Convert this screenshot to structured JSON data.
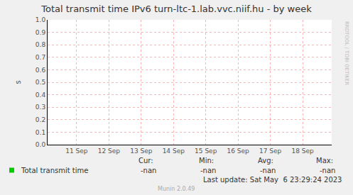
{
  "chart_data": {
    "type": "line",
    "title": "Total transmit time IPv6 turn-ltc-1.lab.vvc.niif.hu - by week",
    "y_label": "s",
    "categories": [
      "11 Sep",
      "12 Sep",
      "13 Sep",
      "14 Sep",
      "15 Sep",
      "16 Sep",
      "17 Sep",
      "18 Sep"
    ],
    "series": [
      {
        "name": "Total transmit time",
        "color": "#00cc00",
        "values": [
          null,
          null,
          null,
          null,
          null,
          null,
          null,
          null
        ]
      }
    ],
    "ylim": [
      0,
      1
    ],
    "yticks": [
      {
        "value": 0,
        "label": "0.0"
      },
      0.1,
      0.2,
      0.3,
      0.4,
      0.5,
      0.6,
      0.7,
      0.8,
      0.9,
      {
        "value": 1,
        "label": "1.0"
      }
    ],
    "grid": true,
    "stats_headers": [
      "Cur:",
      "Min:",
      "Avg:",
      "Max:"
    ],
    "stats_values": [
      "-nan",
      "-nan",
      "-nan",
      "-nan"
    ],
    "last_update": "Last update: Sat May  6 23:29:24 2023",
    "footer": "Munin 2.0.49",
    "watermark": "RRDTOOL / TOBI OETIKER"
  }
}
